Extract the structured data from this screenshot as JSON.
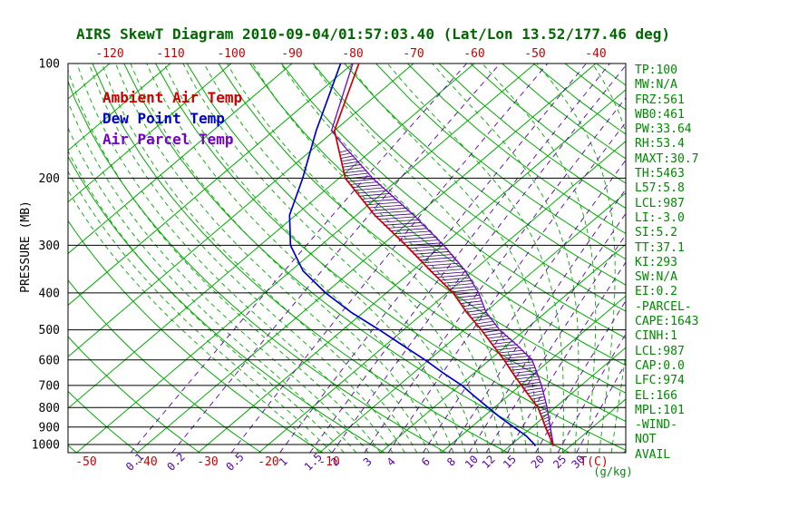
{
  "title": "AIRS SkewT Diagram 2010-09-04/01:57:03.40 (Lat/Lon 13.52/177.46 deg)",
  "colors": {
    "title": "#006600",
    "grid_green": "#00aa00",
    "mixing_purple": "#5500aa",
    "ambient_red": "#cc0000",
    "dew_blue": "#0000cc",
    "parcel_purple": "#7700cc",
    "hatch": "#3a0070",
    "stats_green": "#008800",
    "axis_label_red": "#cc0000",
    "pressure_black": "#000000"
  },
  "legend": [
    {
      "label": "Ambient Air Temp",
      "color": "#cc0000"
    },
    {
      "label": "Dew Point Temp",
      "color": "#0000cc"
    },
    {
      "label": "Air Parcel Temp",
      "color": "#7700cc"
    }
  ],
  "stats": [
    "TP:100",
    "MW:N/A",
    "FRZ:561",
    "WB0:461",
    "PW:33.64",
    "RH:53.4",
    "MAXT:30.7",
    "TH:5463",
    "L57:5.8",
    "LCL:987",
    "LI:-3.0",
    "SI:5.2",
    "TT:37.1",
    "KI:293",
    "SW:N/A",
    "EI:0.2",
    "-PARCEL-",
    "CAPE:1643",
    "CINH:1",
    "LCL:987",
    "CAP:0.0",
    "LFC:974",
    "EL:166",
    "MPL:101",
    "-WIND-",
    "NOT",
    "AVAIL"
  ],
  "chart_data": {
    "type": "line",
    "subtype": "skewT-logP",
    "title": "AIRS SkewT Diagram 2010-09-04/01:57:03.40 (Lat/Lon 13.52/177.46 deg)",
    "y_axis_label": "PRESSURE (MB)",
    "x_axis_label": "T(C)",
    "mixing_ratio_unit": "(g/kg)",
    "pressure_ticks_mb": [
      100,
      200,
      300,
      400,
      500,
      600,
      700,
      800,
      900,
      1000
    ],
    "pressure_range_mb": [
      100,
      1050
    ],
    "top_temp_ticks_C": [
      -120,
      -110,
      -100,
      -90,
      -80,
      -70,
      -60,
      -50,
      -40
    ],
    "bottom_temp_ticks_C": [
      -50,
      -40,
      -30,
      -20,
      -10
    ],
    "mixing_ratio_lines_g_kg": [
      0.1,
      0.2,
      0.5,
      1,
      1.5,
      2,
      3,
      4,
      6,
      8,
      10,
      12,
      15,
      20,
      25,
      30
    ],
    "isotherm_step_C": 10,
    "grid": true,
    "legend_position": "top-left-inside",
    "series": [
      {
        "name": "Ambient Air Temp",
        "color": "#cc0000",
        "points_p_T": [
          [
            1009,
            27.2
          ],
          [
            1000,
            26.8
          ],
          [
            950,
            24.6
          ],
          [
            900,
            22.2
          ],
          [
            850,
            19.8
          ],
          [
            800,
            17.2
          ],
          [
            750,
            13.8
          ],
          [
            700,
            10.2
          ],
          [
            650,
            6.4
          ],
          [
            600,
            2.4
          ],
          [
            550,
            -2.2
          ],
          [
            500,
            -7.2
          ],
          [
            450,
            -13.0
          ],
          [
            400,
            -19.0
          ],
          [
            350,
            -27.0
          ],
          [
            300,
            -36.0
          ],
          [
            250,
            -47.0
          ],
          [
            200,
            -59.0
          ],
          [
            150,
            -70.0
          ],
          [
            100,
            -79.0
          ]
        ]
      },
      {
        "name": "Dew Point Temp",
        "color": "#0000cc",
        "points_p_T": [
          [
            1009,
            24.2
          ],
          [
            1000,
            23.8
          ],
          [
            950,
            20.8
          ],
          [
            900,
            17.0
          ],
          [
            850,
            13.0
          ],
          [
            800,
            9.0
          ],
          [
            750,
            4.8
          ],
          [
            700,
            0.4
          ],
          [
            650,
            -5.0
          ],
          [
            600,
            -10.6
          ],
          [
            550,
            -17.0
          ],
          [
            500,
            -24.0
          ],
          [
            450,
            -32.0
          ],
          [
            400,
            -40.0
          ],
          [
            350,
            -48.0
          ],
          [
            300,
            -55.0
          ],
          [
            250,
            -61.0
          ],
          [
            200,
            -66.0
          ],
          [
            150,
            -73.0
          ],
          [
            100,
            -82.0
          ]
        ]
      },
      {
        "name": "Air Parcel Temp",
        "color": "#7700cc",
        "points_p_T": [
          [
            1009,
            27.2
          ],
          [
            1000,
            26.9
          ],
          [
            987,
            26.4
          ],
          [
            950,
            25.0
          ],
          [
            900,
            23.0
          ],
          [
            850,
            20.9
          ],
          [
            800,
            18.7
          ],
          [
            750,
            16.2
          ],
          [
            700,
            13.5
          ],
          [
            650,
            10.4
          ],
          [
            600,
            7.0
          ],
          [
            550,
            1.8
          ],
          [
            500,
            -4.2
          ],
          [
            450,
            -9.8
          ],
          [
            400,
            -14.8
          ],
          [
            350,
            -21.3
          ],
          [
            300,
            -29.8
          ],
          [
            250,
            -40.6
          ],
          [
            200,
            -54.5
          ],
          [
            175,
            -62.0
          ],
          [
            166,
            -65.0
          ],
          [
            150,
            -70.5
          ],
          [
            100,
            -80.0
          ]
        ]
      }
    ],
    "cape_hatch_between": [
      "Ambient Air Temp",
      "Air Parcel Temp"
    ],
    "cape_hatch_pressure_range": [
      170,
      985
    ]
  }
}
